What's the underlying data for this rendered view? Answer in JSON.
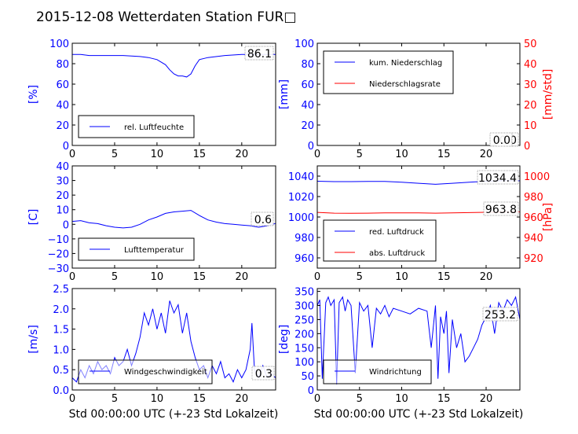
{
  "title": "2015-12-08 Wetterdaten Station FUR□",
  "colors": {
    "blue": "#0000ff",
    "red": "#ff0000",
    "lightblue": "#8080ff"
  },
  "xlabel": "Std 00:00:00 UTC (+-23 Std Lokalzeit)",
  "xticks": [
    "0",
    "5",
    "10",
    "15",
    "20"
  ],
  "chart_data": [
    {
      "id": "humidity",
      "type": "line",
      "ylabel": "[%]",
      "ylim": [
        0,
        100
      ],
      "yticks": [
        "0",
        "20",
        "40",
        "60",
        "80",
        "100"
      ],
      "readout": "86.1",
      "legend": [
        "rel. Luftfeuchte"
      ],
      "legend_loc": "lower-left",
      "series": [
        {
          "name": "rel. Luftfeuchte",
          "color": "#0000ff",
          "x": [
            0,
            1,
            2,
            4,
            6,
            8,
            9,
            10,
            11,
            11.5,
            12,
            12.5,
            13,
            13.5,
            14,
            14.5,
            15,
            16,
            18,
            20,
            22,
            24
          ],
          "y": [
            89,
            89,
            88,
            88,
            88,
            87,
            86,
            84,
            79,
            74,
            70,
            68,
            68,
            67,
            70,
            78,
            84,
            86,
            88,
            89,
            89,
            89
          ]
        }
      ]
    },
    {
      "id": "precip",
      "type": "line",
      "ylabel": "[mm]",
      "ylim": [
        0,
        100
      ],
      "yticks": [
        "0",
        "20",
        "40",
        "60",
        "80",
        "100"
      ],
      "y2label": "[mm/std]",
      "y2lim": [
        0,
        50
      ],
      "y2ticks": [
        "0",
        "10",
        "20",
        "30",
        "40",
        "50"
      ],
      "readout": "0.0",
      "readout2": "0.0",
      "legend": [
        "kum. Niederschlag",
        "Niederschlagsrate"
      ],
      "legend_loc": "upper-left",
      "series": [
        {
          "name": "kum. Niederschlag",
          "color": "#0000ff",
          "x": [
            0,
            24
          ],
          "y": [
            0,
            0
          ]
        },
        {
          "name": "Niederschlagsrate",
          "color": "#ff0000",
          "x": [
            0,
            24
          ],
          "y": [
            0,
            0
          ]
        }
      ]
    },
    {
      "id": "temp",
      "type": "line",
      "ylabel": "[C]",
      "ylim": [
        -30,
        40
      ],
      "yticks": [
        "−30",
        "−20",
        "−10",
        "0",
        "10",
        "20",
        "30",
        "40"
      ],
      "readout": "0.6",
      "legend": [
        "Lufttemperatur"
      ],
      "legend_loc": "lower-left",
      "series": [
        {
          "name": "Lufttemperatur",
          "color": "#0000ff",
          "x": [
            0,
            1,
            2,
            3,
            4,
            5,
            6,
            7,
            8,
            9,
            10,
            11,
            12,
            13,
            14,
            15,
            16,
            17,
            18,
            19,
            20,
            21,
            22,
            23,
            24
          ],
          "y": [
            2,
            2.5,
            1,
            0.5,
            -1,
            -2,
            -2.5,
            -2,
            0,
            3,
            5,
            7.5,
            8.5,
            9,
            9.5,
            6,
            3,
            1.5,
            0.5,
            0,
            -0.5,
            -1,
            -2,
            -1,
            0.6
          ]
        }
      ]
    },
    {
      "id": "pressure",
      "type": "line",
      "ylabel": "",
      "ylim": [
        950,
        1050
      ],
      "yticks": [
        "960",
        "980",
        "1000",
        "1020",
        "1040"
      ],
      "y2label": "[hPa]",
      "y2lim": [
        910,
        1010
      ],
      "y2ticks": [
        "920",
        "940",
        "960",
        "980",
        "1000"
      ],
      "readout": "1034.4",
      "readout2": "963.8",
      "legend": [
        "red. Luftdruck",
        "abs. Luftdruck"
      ],
      "legend_loc": "lower-left",
      "series": [
        {
          "name": "red. Luftdruck",
          "color": "#0000ff",
          "x": [
            0,
            2,
            4,
            6,
            8,
            10,
            12,
            14,
            16,
            18,
            20,
            22,
            24
          ],
          "y": [
            1035,
            1034.6,
            1034.6,
            1034.8,
            1034.8,
            1034,
            1033,
            1032,
            1033,
            1034,
            1035,
            1035.5,
            1035.5
          ]
        },
        {
          "name": "abs. Luftdruck",
          "color": "#ff0000",
          "x": [
            0,
            2,
            4,
            6,
            8,
            10,
            12,
            14,
            16,
            18,
            20,
            22,
            24
          ],
          "y": [
            964.5,
            963.8,
            963.7,
            963.8,
            964,
            964,
            964,
            963.8,
            964,
            964.3,
            964.6,
            964.8,
            965
          ]
        }
      ]
    },
    {
      "id": "wind",
      "type": "line",
      "ylabel": "[m/s]",
      "ylim": [
        0,
        2.5
      ],
      "yticks": [
        "0.0",
        "0.5",
        "1.0",
        "1.5",
        "2.0",
        "2.5"
      ],
      "readout": "0.3",
      "legend": [
        "Windgeschwindigkeit"
      ],
      "legend_loc": "lower-left",
      "series": [
        {
          "name": "Windgeschwindigkeit",
          "color": "#0000ff",
          "x": [
            0,
            0.5,
            1,
            1.5,
            2,
            2.5,
            3,
            3.5,
            4,
            4.5,
            5,
            5.5,
            6,
            6.5,
            7,
            7.5,
            8,
            8.5,
            9,
            9.5,
            10,
            10.5,
            11,
            11.5,
            12,
            12.5,
            13,
            13.5,
            14,
            14.5,
            15,
            15.5,
            16,
            16.5,
            17,
            17.5,
            18,
            18.5,
            19,
            19.5,
            20,
            20.5,
            21,
            21.2,
            21.5,
            22,
            22.5,
            23,
            23.5,
            24
          ],
          "y": [
            0.3,
            0.2,
            0.5,
            0.3,
            0.6,
            0.4,
            0.7,
            0.5,
            0.6,
            0.4,
            0.8,
            0.6,
            0.7,
            1.0,
            0.6,
            0.9,
            1.3,
            1.9,
            1.6,
            2.0,
            1.5,
            1.9,
            1.4,
            2.2,
            1.9,
            2.1,
            1.4,
            1.9,
            1.2,
            0.8,
            0.5,
            0.6,
            0.3,
            0.6,
            0.4,
            0.7,
            0.3,
            0.4,
            0.2,
            0.5,
            0.3,
            0.5,
            1.0,
            1.65,
            0.5,
            0.3,
            0.6,
            0.3,
            0.4,
            0.3
          ]
        }
      ]
    },
    {
      "id": "winddir",
      "type": "line",
      "ylabel": "[deg]",
      "ylim": [
        0,
        360
      ],
      "yticks": [
        "0",
        "50",
        "100",
        "150",
        "200",
        "250",
        "300",
        "350"
      ],
      "readout": "253.2",
      "legend": [
        "Windrichtung"
      ],
      "legend_loc": "lower-left",
      "series": [
        {
          "name": "Windrichtung",
          "color": "#0000ff",
          "x": [
            0,
            0.3,
            0.6,
            1,
            1.3,
            1.6,
            2,
            2.3,
            2.6,
            3,
            3.3,
            3.6,
            4,
            4.5,
            5,
            5.5,
            6,
            6.5,
            7,
            7.5,
            8,
            8.5,
            9,
            10,
            11,
            12,
            13,
            13.5,
            14,
            14.3,
            14.6,
            15,
            15.3,
            15.6,
            16,
            16.5,
            17,
            17.5,
            18,
            18.5,
            19,
            19.5,
            20,
            20.5,
            21,
            21.5,
            22,
            22.5,
            23,
            23.5,
            24
          ],
          "y": [
            300,
            320,
            40,
            310,
            330,
            300,
            320,
            20,
            310,
            330,
            280,
            320,
            300,
            60,
            310,
            280,
            300,
            150,
            290,
            270,
            300,
            260,
            290,
            280,
            270,
            290,
            280,
            150,
            300,
            40,
            260,
            200,
            280,
            60,
            250,
            150,
            200,
            100,
            120,
            150,
            180,
            230,
            260,
            300,
            200,
            310,
            280,
            320,
            300,
            330,
            250
          ]
        }
      ]
    }
  ]
}
